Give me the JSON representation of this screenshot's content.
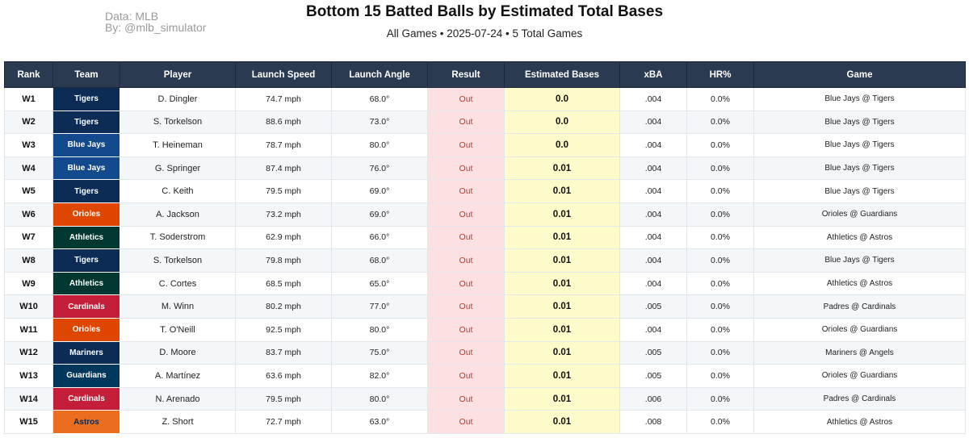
{
  "credit": {
    "data_line": "Data: MLB",
    "by_line": "By: @mlb_simulator"
  },
  "title": "Bottom 15 Batted Balls by Estimated Total Bases",
  "subtitle": "All Games • 2025-07-24 • 5 Total Games",
  "columns": [
    "Rank",
    "Team",
    "Player",
    "Launch Speed",
    "Launch Angle",
    "Result",
    "Estimated Bases",
    "xBA",
    "HR%",
    "Game"
  ],
  "team_colors": {
    "Tigers": "#0c2c56",
    "Blue Jays": "#134a8e",
    "Orioles": "#df4601",
    "Athletics": "#003831",
    "Cardinals": "#c41e3a",
    "Mariners": "#0c2c56",
    "Guardians": "#00385d",
    "Astros": "#eb6e1f"
  },
  "team_text_colors": {
    "Astros": "#002d62"
  },
  "rows": [
    {
      "rank": "W1",
      "team": "Tigers",
      "player": "D. Dingler",
      "speed": "74.7 mph",
      "angle": "68.0°",
      "result": "Out",
      "bases": "0.0",
      "xba": ".004",
      "hr": "0.0%",
      "game": "Blue Jays @ Tigers"
    },
    {
      "rank": "W2",
      "team": "Tigers",
      "player": "S. Torkelson",
      "speed": "88.6 mph",
      "angle": "73.0°",
      "result": "Out",
      "bases": "0.0",
      "xba": ".004",
      "hr": "0.0%",
      "game": "Blue Jays @ Tigers"
    },
    {
      "rank": "W3",
      "team": "Blue Jays",
      "player": "T. Heineman",
      "speed": "78.7 mph",
      "angle": "80.0°",
      "result": "Out",
      "bases": "0.0",
      "xba": ".004",
      "hr": "0.0%",
      "game": "Blue Jays @ Tigers"
    },
    {
      "rank": "W4",
      "team": "Blue Jays",
      "player": "G. Springer",
      "speed": "87.4 mph",
      "angle": "76.0°",
      "result": "Out",
      "bases": "0.01",
      "xba": ".004",
      "hr": "0.0%",
      "game": "Blue Jays @ Tigers"
    },
    {
      "rank": "W5",
      "team": "Tigers",
      "player": "C. Keith",
      "speed": "79.5 mph",
      "angle": "69.0°",
      "result": "Out",
      "bases": "0.01",
      "xba": ".004",
      "hr": "0.0%",
      "game": "Blue Jays @ Tigers"
    },
    {
      "rank": "W6",
      "team": "Orioles",
      "player": "A. Jackson",
      "speed": "73.2 mph",
      "angle": "69.0°",
      "result": "Out",
      "bases": "0.01",
      "xba": ".004",
      "hr": "0.0%",
      "game": "Orioles @ Guardians"
    },
    {
      "rank": "W7",
      "team": "Athletics",
      "player": "T. Soderstrom",
      "speed": "62.9 mph",
      "angle": "66.0°",
      "result": "Out",
      "bases": "0.01",
      "xba": ".004",
      "hr": "0.0%",
      "game": "Athletics @ Astros"
    },
    {
      "rank": "W8",
      "team": "Tigers",
      "player": "S. Torkelson",
      "speed": "79.8 mph",
      "angle": "68.0°",
      "result": "Out",
      "bases": "0.01",
      "xba": ".004",
      "hr": "0.0%",
      "game": "Blue Jays @ Tigers"
    },
    {
      "rank": "W9",
      "team": "Athletics",
      "player": "C. Cortes",
      "speed": "68.5 mph",
      "angle": "65.0°",
      "result": "Out",
      "bases": "0.01",
      "xba": ".004",
      "hr": "0.0%",
      "game": "Athletics @ Astros"
    },
    {
      "rank": "W10",
      "team": "Cardinals",
      "player": "M. Winn",
      "speed": "80.2 mph",
      "angle": "77.0°",
      "result": "Out",
      "bases": "0.01",
      "xba": ".005",
      "hr": "0.0%",
      "game": "Padres @ Cardinals"
    },
    {
      "rank": "W11",
      "team": "Orioles",
      "player": "T. O'Neill",
      "speed": "92.5 mph",
      "angle": "80.0°",
      "result": "Out",
      "bases": "0.01",
      "xba": ".004",
      "hr": "0.0%",
      "game": "Orioles @ Guardians"
    },
    {
      "rank": "W12",
      "team": "Mariners",
      "player": "D. Moore",
      "speed": "83.7 mph",
      "angle": "75.0°",
      "result": "Out",
      "bases": "0.01",
      "xba": ".005",
      "hr": "0.0%",
      "game": "Mariners @ Angels"
    },
    {
      "rank": "W13",
      "team": "Guardians",
      "player": "A. Martínez",
      "speed": "63.6 mph",
      "angle": "82.0°",
      "result": "Out",
      "bases": "0.01",
      "xba": ".005",
      "hr": "0.0%",
      "game": "Orioles @ Guardians"
    },
    {
      "rank": "W14",
      "team": "Cardinals",
      "player": "N. Arenado",
      "speed": "79.5 mph",
      "angle": "80.0°",
      "result": "Out",
      "bases": "0.01",
      "xba": ".006",
      "hr": "0.0%",
      "game": "Padres @ Cardinals"
    },
    {
      "rank": "W15",
      "team": "Astros",
      "player": "Z. Short",
      "speed": "72.7 mph",
      "angle": "63.0°",
      "result": "Out",
      "bases": "0.01",
      "xba": ".008",
      "hr": "0.0%",
      "game": "Athletics @ Astros"
    }
  ]
}
